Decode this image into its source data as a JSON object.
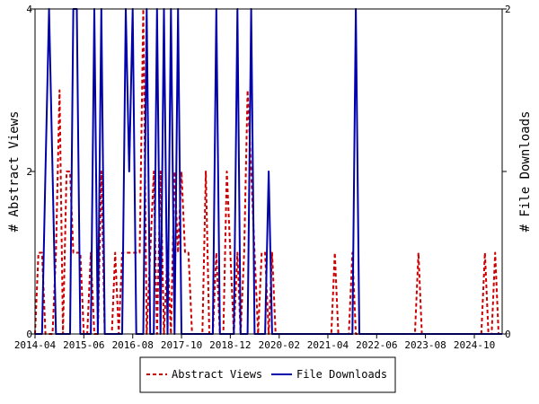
{
  "chart_data": {
    "type": "line",
    "title": "",
    "x_tick_labels": [
      "2014-04",
      "2015-06",
      "2016-08",
      "2017-10",
      "2018-12",
      "2020-02",
      "2021-04",
      "2022-06",
      "2023-08",
      "2024-10"
    ],
    "x_tick_dates": [
      "2014-04-01",
      "2015-06-01",
      "2016-08-01",
      "2017-10-01",
      "2018-12-01",
      "2020-02-01",
      "2021-04-01",
      "2022-06-01",
      "2023-08-01",
      "2024-10-01"
    ],
    "xlim": [
      "2014-04-01",
      "2025-06-01"
    ],
    "y_left": {
      "label": "# Abstract Views",
      "ylim": [
        0,
        4
      ],
      "ticks": [
        0,
        2,
        4
      ]
    },
    "y_right": {
      "label": "# File Downloads",
      "ylim": [
        0,
        2
      ],
      "ticks": [
        0,
        1,
        2
      ],
      "tick_labels": [
        "0",
        "",
        "2"
      ]
    },
    "grid": false,
    "legend_position": "bottom-center",
    "series": [
      {
        "name": "Abstract Views",
        "axis": "left",
        "color": "#cc0000",
        "style": "dashed",
        "points": [
          [
            "2014-04-01",
            0
          ],
          [
            "2014-05-01",
            1
          ],
          [
            "2014-06-01",
            1
          ],
          [
            "2014-07-01",
            0
          ],
          [
            "2014-08-01",
            0
          ],
          [
            "2014-09-01",
            0
          ],
          [
            "2014-10-01",
            1
          ],
          [
            "2014-11-01",
            3
          ],
          [
            "2014-12-01",
            0
          ],
          [
            "2015-01-01",
            2
          ],
          [
            "2015-02-01",
            2
          ],
          [
            "2015-03-01",
            1
          ],
          [
            "2015-04-01",
            1
          ],
          [
            "2015-05-01",
            1
          ],
          [
            "2015-06-01",
            0
          ],
          [
            "2015-07-01",
            0
          ],
          [
            "2015-08-01",
            1
          ],
          [
            "2015-09-01",
            0
          ],
          [
            "2015-10-01",
            0
          ],
          [
            "2015-11-01",
            2
          ],
          [
            "2015-12-01",
            0
          ],
          [
            "2016-01-01",
            0
          ],
          [
            "2016-02-01",
            0
          ],
          [
            "2016-03-01",
            1
          ],
          [
            "2016-04-01",
            0
          ],
          [
            "2016-05-01",
            1
          ],
          [
            "2016-06-01",
            1
          ],
          [
            "2016-07-01",
            1
          ],
          [
            "2016-08-01",
            1
          ],
          [
            "2016-09-01",
            1
          ],
          [
            "2016-10-01",
            1
          ],
          [
            "2016-11-01",
            4
          ],
          [
            "2016-12-01",
            0
          ],
          [
            "2017-01-01",
            1
          ],
          [
            "2017-02-01",
            2
          ],
          [
            "2017-03-01",
            0
          ],
          [
            "2017-04-01",
            2
          ],
          [
            "2017-05-01",
            0
          ],
          [
            "2017-06-01",
            1
          ],
          [
            "2017-07-01",
            0
          ],
          [
            "2017-08-01",
            2
          ],
          [
            "2017-09-01",
            1
          ],
          [
            "2017-10-01",
            2
          ],
          [
            "2017-11-01",
            1
          ],
          [
            "2017-12-01",
            1
          ],
          [
            "2018-01-01",
            0
          ],
          [
            "2018-02-01",
            0
          ],
          [
            "2018-03-01",
            0
          ],
          [
            "2018-04-01",
            0
          ],
          [
            "2018-05-01",
            2
          ],
          [
            "2018-06-01",
            0
          ],
          [
            "2018-07-01",
            0
          ],
          [
            "2018-08-01",
            1
          ],
          [
            "2018-09-01",
            0
          ],
          [
            "2018-10-01",
            0
          ],
          [
            "2018-11-01",
            2
          ],
          [
            "2018-12-01",
            1
          ],
          [
            "2019-01-01",
            0
          ],
          [
            "2019-02-01",
            1
          ],
          [
            "2019-03-01",
            0
          ],
          [
            "2019-04-01",
            1
          ],
          [
            "2019-05-01",
            3
          ],
          [
            "2019-06-01",
            2
          ],
          [
            "2019-07-01",
            1
          ],
          [
            "2019-08-01",
            0
          ],
          [
            "2019-09-01",
            1
          ],
          [
            "2019-10-01",
            1
          ],
          [
            "2019-11-01",
            0
          ],
          [
            "2019-12-01",
            1
          ],
          [
            "2020-01-01",
            0
          ],
          [
            "2020-02-01",
            0
          ],
          [
            "2020-03-01",
            0
          ],
          [
            "2020-04-01",
            0
          ],
          [
            "2020-05-01",
            0
          ],
          [
            "2020-06-01",
            0
          ],
          [
            "2020-07-01",
            0
          ],
          [
            "2020-08-01",
            0
          ],
          [
            "2020-09-01",
            0
          ],
          [
            "2020-10-01",
            0
          ],
          [
            "2020-11-01",
            0
          ],
          [
            "2020-12-01",
            0
          ],
          [
            "2021-01-01",
            0
          ],
          [
            "2021-02-01",
            0
          ],
          [
            "2021-03-01",
            0
          ],
          [
            "2021-04-01",
            0
          ],
          [
            "2021-05-01",
            0
          ],
          [
            "2021-06-01",
            1
          ],
          [
            "2021-07-01",
            0
          ],
          [
            "2021-08-01",
            0
          ],
          [
            "2021-09-01",
            0
          ],
          [
            "2021-10-01",
            0
          ],
          [
            "2021-11-01",
            1
          ],
          [
            "2021-12-01",
            0
          ],
          [
            "2022-01-01",
            0
          ],
          [
            "2022-02-01",
            0
          ],
          [
            "2022-03-01",
            0
          ],
          [
            "2022-04-01",
            0
          ],
          [
            "2022-05-01",
            0
          ],
          [
            "2022-06-01",
            0
          ],
          [
            "2022-07-01",
            0
          ],
          [
            "2022-08-01",
            0
          ],
          [
            "2022-09-01",
            0
          ],
          [
            "2022-10-01",
            0
          ],
          [
            "2022-11-01",
            0
          ],
          [
            "2022-12-01",
            0
          ],
          [
            "2023-01-01",
            0
          ],
          [
            "2023-02-01",
            0
          ],
          [
            "2023-03-01",
            0
          ],
          [
            "2023-04-01",
            0
          ],
          [
            "2023-05-01",
            0
          ],
          [
            "2023-06-01",
            1
          ],
          [
            "2023-07-01",
            0
          ],
          [
            "2023-08-01",
            0
          ],
          [
            "2023-09-01",
            0
          ],
          [
            "2023-10-01",
            0
          ],
          [
            "2023-11-01",
            0
          ],
          [
            "2023-12-01",
            0
          ],
          [
            "2024-01-01",
            0
          ],
          [
            "2024-02-01",
            0
          ],
          [
            "2024-03-01",
            0
          ],
          [
            "2024-04-01",
            0
          ],
          [
            "2024-05-01",
            0
          ],
          [
            "2024-06-01",
            0
          ],
          [
            "2024-07-01",
            0
          ],
          [
            "2024-08-01",
            0
          ],
          [
            "2024-09-01",
            0
          ],
          [
            "2024-10-01",
            0
          ],
          [
            "2024-11-01",
            0
          ],
          [
            "2024-12-01",
            0
          ],
          [
            "2025-01-01",
            1
          ],
          [
            "2025-02-01",
            0
          ],
          [
            "2025-03-01",
            0
          ],
          [
            "2025-04-01",
            1
          ],
          [
            "2025-05-01",
            0
          ],
          [
            "2025-06-01",
            0
          ]
        ]
      },
      {
        "name": "File Downloads",
        "axis": "right",
        "color": "#0000aa",
        "style": "solid",
        "points": [
          [
            "2014-04-01",
            0
          ],
          [
            "2014-05-01",
            0
          ],
          [
            "2014-06-01",
            0
          ],
          [
            "2014-07-01",
            1
          ],
          [
            "2014-08-01",
            2
          ],
          [
            "2014-09-01",
            1
          ],
          [
            "2014-10-01",
            0
          ],
          [
            "2014-11-01",
            0
          ],
          [
            "2014-12-01",
            0
          ],
          [
            "2015-01-01",
            0
          ],
          [
            "2015-02-01",
            0
          ],
          [
            "2015-03-01",
            2
          ],
          [
            "2015-04-01",
            2
          ],
          [
            "2015-05-01",
            0
          ],
          [
            "2015-06-01",
            0
          ],
          [
            "2015-07-01",
            0
          ],
          [
            "2015-08-01",
            0
          ],
          [
            "2015-09-01",
            2
          ],
          [
            "2015-10-01",
            0
          ],
          [
            "2015-11-01",
            2
          ],
          [
            "2015-12-01",
            0
          ],
          [
            "2016-01-01",
            0
          ],
          [
            "2016-02-01",
            0
          ],
          [
            "2016-03-01",
            0
          ],
          [
            "2016-04-01",
            0
          ],
          [
            "2016-05-01",
            0
          ],
          [
            "2016-06-01",
            2
          ],
          [
            "2016-07-01",
            1
          ],
          [
            "2016-08-01",
            2
          ],
          [
            "2016-09-01",
            0
          ],
          [
            "2016-10-01",
            0
          ],
          [
            "2016-11-01",
            0
          ],
          [
            "2016-12-01",
            2
          ],
          [
            "2017-01-01",
            0
          ],
          [
            "2017-02-01",
            0
          ],
          [
            "2017-03-01",
            2
          ],
          [
            "2017-04-01",
            0
          ],
          [
            "2017-05-01",
            2
          ],
          [
            "2017-06-01",
            0
          ],
          [
            "2017-07-01",
            2
          ],
          [
            "2017-08-01",
            0
          ],
          [
            "2017-09-01",
            2
          ],
          [
            "2017-10-01",
            0
          ],
          [
            "2017-11-01",
            0
          ],
          [
            "2017-12-01",
            0
          ],
          [
            "2018-01-01",
            0
          ],
          [
            "2018-02-01",
            0
          ],
          [
            "2018-03-01",
            0
          ],
          [
            "2018-04-01",
            0
          ],
          [
            "2018-05-01",
            0
          ],
          [
            "2018-06-01",
            0
          ],
          [
            "2018-07-01",
            0
          ],
          [
            "2018-08-01",
            2
          ],
          [
            "2018-09-01",
            0
          ],
          [
            "2018-10-01",
            0
          ],
          [
            "2018-11-01",
            0
          ],
          [
            "2018-12-01",
            0
          ],
          [
            "2019-01-01",
            0
          ],
          [
            "2019-02-01",
            2
          ],
          [
            "2019-03-01",
            0
          ],
          [
            "2019-04-01",
            0
          ],
          [
            "2019-05-01",
            0
          ],
          [
            "2019-06-01",
            2
          ],
          [
            "2019-07-01",
            0
          ],
          [
            "2019-08-01",
            0
          ],
          [
            "2019-09-01",
            0
          ],
          [
            "2019-10-01",
            0
          ],
          [
            "2019-11-01",
            1
          ],
          [
            "2019-12-01",
            0
          ],
          [
            "2020-01-01",
            0
          ],
          [
            "2020-02-01",
            0
          ],
          [
            "2020-03-01",
            0
          ],
          [
            "2020-04-01",
            0
          ],
          [
            "2020-05-01",
            0
          ],
          [
            "2020-06-01",
            0
          ],
          [
            "2020-07-01",
            0
          ],
          [
            "2020-08-01",
            0
          ],
          [
            "2020-09-01",
            0
          ],
          [
            "2020-10-01",
            0
          ],
          [
            "2020-11-01",
            0
          ],
          [
            "2020-12-01",
            0
          ],
          [
            "2021-01-01",
            0
          ],
          [
            "2021-02-01",
            0
          ],
          [
            "2021-03-01",
            0
          ],
          [
            "2021-04-01",
            0
          ],
          [
            "2021-05-01",
            0
          ],
          [
            "2021-06-01",
            0
          ],
          [
            "2021-07-01",
            0
          ],
          [
            "2021-08-01",
            0
          ],
          [
            "2021-09-01",
            0
          ],
          [
            "2021-10-01",
            0
          ],
          [
            "2021-11-01",
            0
          ],
          [
            "2021-12-01",
            2
          ],
          [
            "2022-01-01",
            0
          ],
          [
            "2022-02-01",
            0
          ],
          [
            "2022-03-01",
            0
          ],
          [
            "2022-04-01",
            0
          ],
          [
            "2022-05-01",
            0
          ],
          [
            "2022-06-01",
            0
          ],
          [
            "2022-07-01",
            0
          ],
          [
            "2022-08-01",
            0
          ],
          [
            "2022-09-01",
            0
          ],
          [
            "2022-10-01",
            0
          ],
          [
            "2022-11-01",
            0
          ],
          [
            "2022-12-01",
            0
          ],
          [
            "2023-01-01",
            0
          ],
          [
            "2023-02-01",
            0
          ],
          [
            "2023-03-01",
            0
          ],
          [
            "2023-04-01",
            0
          ],
          [
            "2023-05-01",
            0
          ],
          [
            "2023-06-01",
            0
          ],
          [
            "2023-07-01",
            0
          ],
          [
            "2023-08-01",
            0
          ],
          [
            "2023-09-01",
            0
          ],
          [
            "2023-10-01",
            0
          ],
          [
            "2023-11-01",
            0
          ],
          [
            "2023-12-01",
            0
          ],
          [
            "2024-01-01",
            0
          ],
          [
            "2024-02-01",
            0
          ],
          [
            "2024-03-01",
            0
          ],
          [
            "2024-04-01",
            0
          ],
          [
            "2024-05-01",
            0
          ],
          [
            "2024-06-01",
            0
          ],
          [
            "2024-07-01",
            0
          ],
          [
            "2024-08-01",
            0
          ],
          [
            "2024-09-01",
            0
          ],
          [
            "2024-10-01",
            0
          ],
          [
            "2024-11-01",
            0
          ],
          [
            "2024-12-01",
            0
          ],
          [
            "2025-01-01",
            0
          ],
          [
            "2025-02-01",
            0
          ],
          [
            "2025-03-01",
            0
          ],
          [
            "2025-04-01",
            0
          ],
          [
            "2025-05-01",
            0
          ],
          [
            "2025-06-01",
            0
          ]
        ]
      }
    ]
  }
}
